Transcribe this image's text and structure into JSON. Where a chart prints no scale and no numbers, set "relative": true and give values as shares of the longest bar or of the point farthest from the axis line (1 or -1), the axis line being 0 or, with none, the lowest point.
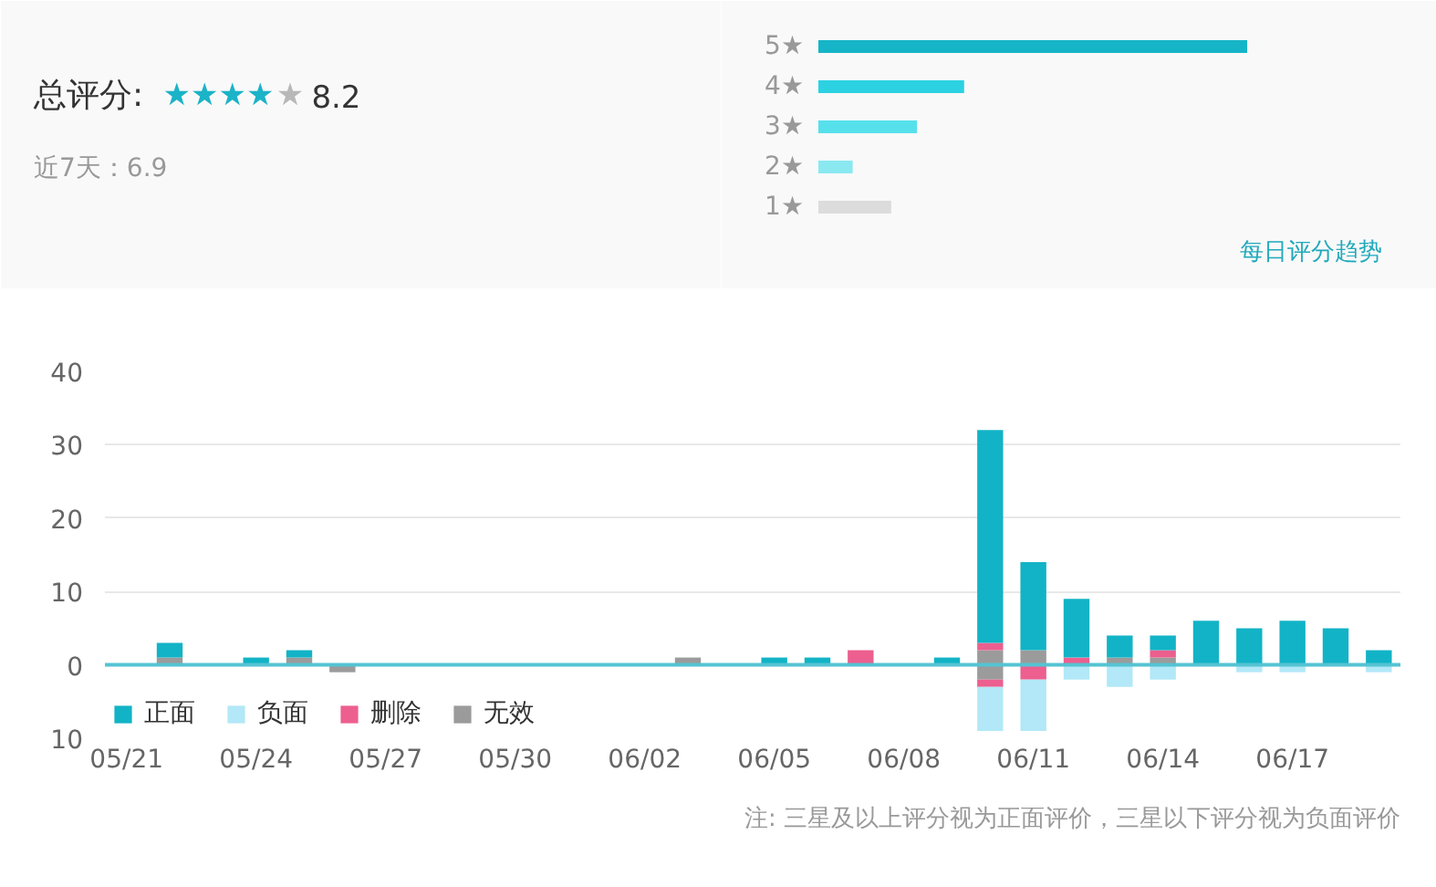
{
  "chart_data": [
    {
      "type": "other",
      "title": "总评分:",
      "annotations": [
        "★★★★",
        "★",
        "8.2"
      ],
      "colors": [
        "#1bb3c7",
        "#b8b8b8",
        "#333333"
      ],
      "subtitle": "近7天：6.9"
    },
    {
      "type": "bar",
      "orientation": "horizontal",
      "relative": true,
      "categories": [
        "5★",
        "4★",
        "3★",
        "2★",
        "1★"
      ],
      "values": [
        1,
        0.34,
        0.23,
        0.08,
        0.17
      ],
      "colors": [
        "#15b5c7",
        "#2cd2e2",
        "#56e0ec",
        "#8ae8f1",
        "#dcdcdc"
      ],
      "tick_labels": "y",
      "annotations": [
        "每日评分趋势"
      ]
    },
    {
      "type": "bar",
      "stacked": true,
      "categories": [
        "05/21",
        null,
        null,
        "05/24",
        null,
        null,
        "05/27",
        null,
        null,
        "05/30",
        null,
        null,
        "06/02",
        null,
        null,
        "06/05",
        null,
        null,
        "06/08",
        null,
        null,
        "06/11",
        null,
        null,
        "06/14",
        null,
        null,
        "06/17",
        null,
        null
      ],
      "series": [
        {
          "name": "无效",
          "color": "#9b9b9b",
          "values": [
            null,
            1,
            null,
            null,
            1,
            null,
            null,
            null,
            null,
            null,
            null,
            null,
            null,
            1,
            null,
            null,
            null,
            null,
            null,
            null,
            2,
            2,
            null,
            1,
            1,
            null,
            null,
            null,
            null,
            null
          ]
        },
        {
          "color": "#9b9b9b",
          "values": [
            null,
            null,
            null,
            null,
            null,
            -1,
            null,
            null,
            null,
            null,
            null,
            null,
            null,
            null,
            null,
            null,
            null,
            null,
            null,
            null,
            -2,
            null,
            null,
            null,
            null,
            null,
            null,
            null,
            null,
            null
          ]
        },
        {
          "name": "删除",
          "color": "#ec5f8f",
          "values": [
            null,
            null,
            null,
            null,
            null,
            null,
            null,
            null,
            null,
            null,
            null,
            null,
            null,
            null,
            null,
            null,
            null,
            2,
            null,
            null,
            1,
            null,
            1,
            null,
            1,
            null,
            null,
            null,
            null,
            null
          ]
        },
        {
          "color": "#ec5f8f",
          "values": [
            null,
            null,
            null,
            null,
            null,
            null,
            null,
            null,
            null,
            null,
            null,
            null,
            null,
            null,
            null,
            null,
            null,
            null,
            null,
            null,
            -1,
            -2,
            null,
            null,
            null,
            null,
            null,
            null,
            null,
            null
          ]
        },
        {
          "name": "负面",
          "color": "#b2e8f7",
          "values": [
            null,
            null,
            null,
            null,
            null,
            null,
            null,
            null,
            null,
            null,
            null,
            null,
            null,
            null,
            null,
            null,
            null,
            null,
            null,
            null,
            -6,
            -7,
            -2,
            -3,
            -2,
            null,
            -1,
            -1,
            null,
            -1
          ]
        },
        {
          "name": "正面",
          "color": "#12b3c6",
          "values": [
            null,
            2,
            null,
            1,
            1,
            null,
            null,
            null,
            null,
            null,
            null,
            null,
            null,
            null,
            null,
            1,
            1,
            null,
            null,
            1,
            29,
            12,
            8,
            3,
            2,
            6,
            5,
            6,
            5,
            2
          ]
        }
      ],
      "ylim": [
        -10,
        40
      ],
      "yticks": [
        {
          "value": -10,
          "label": "10"
        },
        0,
        10,
        20,
        30,
        40
      ],
      "grid": "y",
      "legend": "bottom left",
      "ref_lines": [
        {
          "axis": "y",
          "value": 0,
          "color": "#55c3d2"
        }
      ],
      "annotations": [
        "注: 三星及以上评分视为正面评价，三星以下评分视为负面评价"
      ]
    }
  ]
}
